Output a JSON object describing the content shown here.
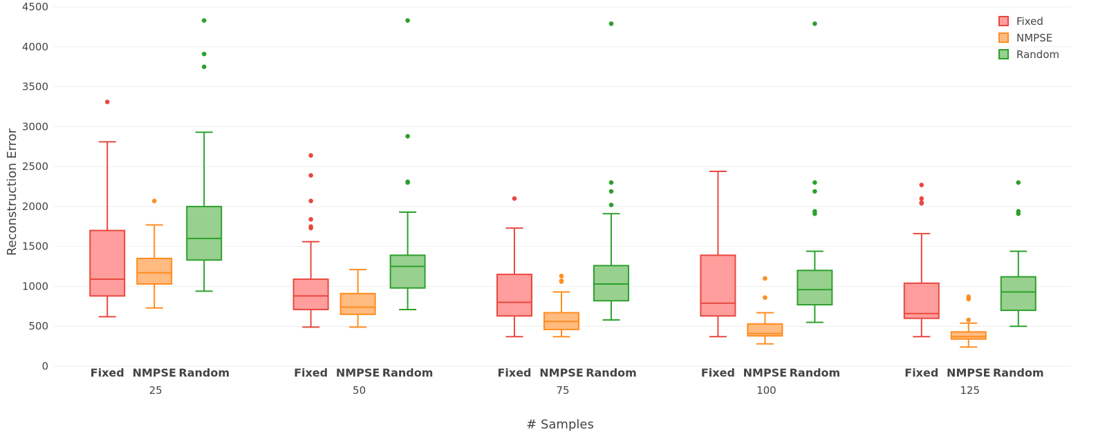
{
  "chart_data": {
    "type": "box",
    "title": "",
    "xlabel": "# Samples",
    "ylabel": "Reconstruction Error",
    "ylim": [
      0,
      4500
    ],
    "yticks": [
      0,
      500,
      1000,
      1500,
      2000,
      2500,
      3000,
      3500,
      4000,
      4500
    ],
    "grid": true,
    "legend_position": "top-right",
    "groups": [
      "25",
      "50",
      "75",
      "100",
      "125"
    ],
    "series": [
      {
        "name": "Fixed",
        "color": "#e8483f",
        "fill": "#ff9e9c",
        "boxes": [
          {
            "min": 620,
            "q1": 880,
            "median": 1090,
            "q3": 1700,
            "max": 2810,
            "outliers": [
              3310
            ]
          },
          {
            "min": 490,
            "q1": 710,
            "median": 880,
            "q3": 1090,
            "max": 1560,
            "outliers": [
              1730,
              1750,
              1840,
              2070,
              2390,
              2640
            ]
          },
          {
            "min": 370,
            "q1": 630,
            "median": 800,
            "q3": 1150,
            "max": 1730,
            "outliers": [
              2100
            ]
          },
          {
            "min": 370,
            "q1": 630,
            "median": 790,
            "q3": 1390,
            "max": 2440,
            "outliers": []
          },
          {
            "min": 370,
            "q1": 600,
            "median": 660,
            "q3": 1040,
            "max": 1660,
            "outliers": [
              2040,
              2050,
              2100,
              2270
            ]
          }
        ]
      },
      {
        "name": "NMPSE",
        "color": "#ff8c1f",
        "fill": "#ffbb80",
        "boxes": [
          {
            "min": 730,
            "q1": 1030,
            "median": 1170,
            "q3": 1350,
            "max": 1770,
            "outliers": [
              2070
            ]
          },
          {
            "min": 490,
            "q1": 650,
            "median": 740,
            "q3": 910,
            "max": 1210,
            "outliers": []
          },
          {
            "min": 370,
            "q1": 460,
            "median": 560,
            "q3": 670,
            "max": 930,
            "outliers": [
              1060,
              1070,
              1130
            ]
          },
          {
            "min": 280,
            "q1": 380,
            "median": 410,
            "q3": 530,
            "max": 670,
            "outliers": [
              860,
              1100
            ]
          },
          {
            "min": 240,
            "q1": 340,
            "median": 370,
            "q3": 430,
            "max": 540,
            "outliers": [
              580,
              840,
              860,
              870
            ]
          }
        ]
      },
      {
        "name": "Random",
        "color": "#2ca02c",
        "fill": "#98d08f",
        "boxes": [
          {
            "min": 940,
            "q1": 1330,
            "median": 1600,
            "q3": 2000,
            "max": 2930,
            "outliers": [
              3750,
              3910,
              4330
            ]
          },
          {
            "min": 710,
            "q1": 980,
            "median": 1250,
            "q3": 1390,
            "max": 1930,
            "outliers": [
              2300,
              2310,
              2880,
              4330
            ]
          },
          {
            "min": 580,
            "q1": 820,
            "median": 1030,
            "q3": 1260,
            "max": 1910,
            "outliers": [
              2020,
              2190,
              2300,
              4290
            ]
          },
          {
            "min": 550,
            "q1": 770,
            "median": 960,
            "q3": 1200,
            "max": 1440,
            "outliers": [
              1910,
              1940,
              2190,
              2300,
              4290
            ]
          },
          {
            "min": 500,
            "q1": 700,
            "median": 930,
            "q3": 1120,
            "max": 1440,
            "outliers": [
              1910,
              1940,
              2300
            ]
          }
        ]
      }
    ]
  }
}
